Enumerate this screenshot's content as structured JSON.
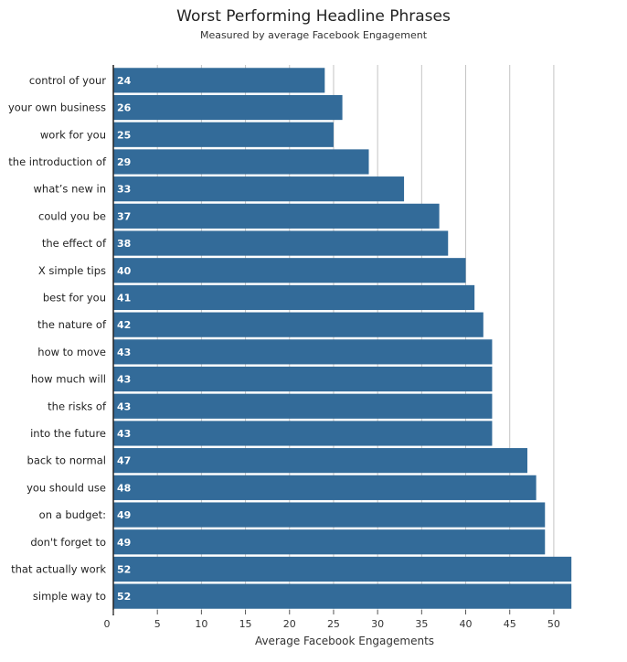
{
  "chart_data": {
    "type": "bar",
    "orientation": "horizontal",
    "title": "Worst Performing Headline Phrases",
    "subtitle": "Measured by average Facebook Engagement",
    "xlabel": "Average Facebook Engagements",
    "ylabel": "",
    "xlim": [
      0,
      52.5
    ],
    "xticks": [
      0,
      5,
      10,
      15,
      20,
      25,
      30,
      35,
      40,
      45,
      50
    ],
    "grid": true,
    "bar_color": "#336b99",
    "categories": [
      "control of your",
      "your own business",
      "work for you",
      "the introduction of",
      "what’s new in",
      "could you be",
      "the effect of",
      "X simple tips",
      "best for you",
      "the nature of",
      "how to move",
      "how much will",
      "the risks of",
      "into the future",
      "back to normal",
      "you should use",
      "on a budget:",
      "don't forget to",
      "that actually work",
      "simple way to"
    ],
    "values": [
      24,
      26,
      25,
      29,
      33,
      37,
      38,
      40,
      41,
      42,
      43,
      43,
      43,
      43,
      47,
      48,
      49,
      49,
      52,
      52
    ]
  }
}
